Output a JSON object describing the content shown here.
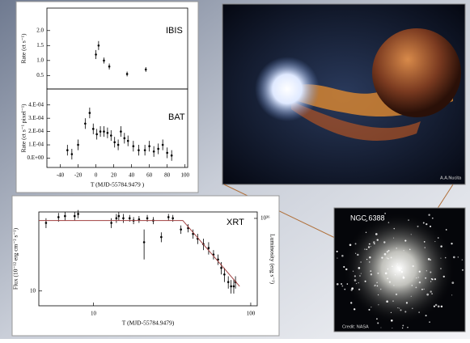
{
  "chart_data": [
    {
      "type": "scatter",
      "annotation": "IBIS",
      "ylabel": "Rate (ct s⁻¹)",
      "xlim": [
        -55,
        103
      ],
      "ylim": [
        0.05,
        2.75
      ],
      "yticks": [
        0.5,
        {
          "value": 1.0,
          "label": "1.0"
        },
        1.5,
        {
          "value": 2.0,
          "label": "2.0"
        }
      ],
      "series": [
        {
          "color": "#000000",
          "x": [
            0,
            3,
            9,
            15,
            35,
            56
          ],
          "values": [
            1.2,
            1.5,
            1.0,
            0.8,
            0.55,
            0.7
          ],
          "errors": [
            0.15,
            0.15,
            0.1,
            0.1,
            0.08,
            0.08
          ]
        }
      ]
    },
    {
      "type": "scatter",
      "annotation": "BAT",
      "ylabel": "Rate (ct s⁻¹ pixel⁻¹)",
      "xlabel": "T (MJD-55784.9479 )",
      "xlim": [
        -55,
        103
      ],
      "ylim": [
        -7e-05,
        0.00052
      ],
      "xticks": [
        -40,
        -20,
        0,
        20,
        40,
        60,
        80,
        100
      ],
      "yticks": [
        {
          "value": 0,
          "label": "0.E+00"
        },
        {
          "value": 0.0001,
          "label": "1.E-04"
        },
        {
          "value": 0.0002,
          "label": "2.E-04"
        },
        {
          "value": 0.0003,
          "label": "3.E-04"
        },
        {
          "value": 0.0004,
          "label": "4.E-04"
        }
      ],
      "series": [
        {
          "color": "#000000",
          "x": [
            -32,
            -27,
            -20,
            -12,
            -7,
            -3,
            1,
            5,
            9,
            13,
            17,
            21,
            25,
            28,
            32,
            36,
            42,
            48,
            55,
            60,
            65,
            70,
            75,
            80,
            85
          ],
          "values": [
            6e-05,
            3e-05,
            0.0001,
            0.00026,
            0.00034,
            0.00022,
            0.00018,
            0.0002,
            0.0002,
            0.00019,
            0.00017,
            0.00012,
            0.0001,
            0.0002,
            0.00015,
            0.00013,
            9e-05,
            6e-05,
            6e-05,
            9e-05,
            5e-05,
            7e-05,
            0.0001,
            4e-05,
            2e-05
          ],
          "errors": [
            4e-05,
            4e-05,
            4e-05,
            4e-05,
            4e-05,
            4e-05,
            4e-05,
            4e-05,
            4e-05,
            4e-05,
            4e-05,
            4e-05,
            4e-05,
            4e-05,
            4e-05,
            4e-05,
            4e-05,
            4e-05,
            4e-05,
            4e-05,
            4e-05,
            4e-05,
            4e-05,
            4e-05,
            4e-05
          ]
        }
      ]
    },
    {
      "type": "scatter",
      "annotation": "XRT",
      "ylabel": "Flux (10⁻¹² erg cm⁻² s⁻¹)",
      "y2label": "Luminosity (erg s⁻¹)",
      "xlabel": "T (MJD-55784.9479)",
      "xlog": true,
      "ylog": true,
      "y2log": true,
      "xlim": [
        4.5,
        110
      ],
      "ylim": [
        7.4,
        50
      ],
      "y2lim": [
        1.69e+35,
        1.14e+36
      ],
      "xticks": [
        10,
        100
      ],
      "yticks": [
        10
      ],
      "y2ticks": [
        {
          "value": 1e+36,
          "label": "10³⁶"
        }
      ],
      "series": [
        {
          "color": "#000000",
          "x": [
            5.0,
            6.0,
            6.6,
            7.6,
            8.0,
            13,
            14,
            14.5,
            15.5,
            17,
            18,
            19.5,
            21,
            22,
            24,
            27,
            30,
            32,
            36,
            40,
            43,
            46,
            50,
            54,
            58,
            62,
            65,
            68,
            72,
            75,
            78,
            80
          ],
          "values": [
            40,
            45,
            46,
            46,
            48,
            40,
            44,
            46,
            44,
            44,
            42,
            43,
            27,
            44,
            42,
            30,
            45,
            44,
            35,
            36,
            32,
            29,
            26,
            24,
            21,
            19,
            16,
            14,
            12,
            11,
            11,
            12
          ],
          "errors": [
            4,
            4,
            4,
            4,
            4,
            4,
            4,
            4,
            4,
            3,
            3,
            3,
            8,
            3,
            3,
            3,
            3,
            3,
            3,
            3,
            3,
            3,
            3,
            3,
            2,
            2,
            2,
            2,
            1.5,
            1.5,
            1.5,
            1.5
          ]
        },
        {
          "style": "line",
          "color": "#a04040",
          "x": [
            4.5,
            37,
            85
          ],
          "values": [
            42,
            42,
            11
          ]
        }
      ]
    }
  ],
  "illustration": {
    "credit": "A.A.Nucita"
  },
  "cluster": {
    "label": "NGC 6388",
    "credit": "Credit: NASA"
  }
}
